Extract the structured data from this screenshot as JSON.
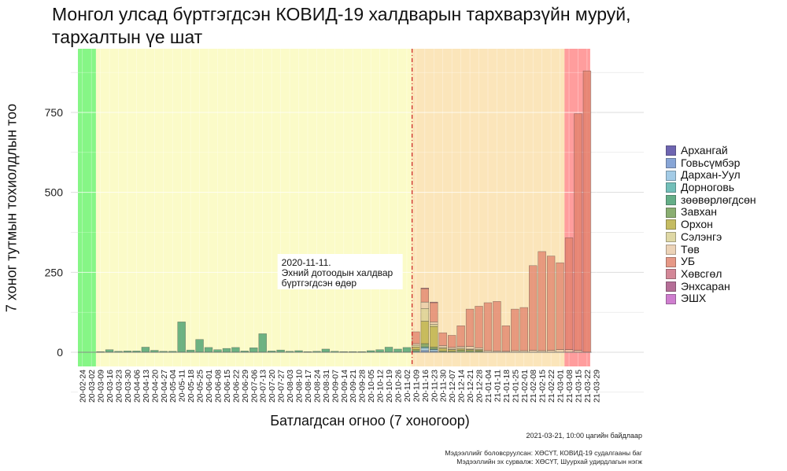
{
  "chart_data": {
    "type": "bar",
    "stacked": true,
    "title": "Монгол улсад бүртгэгдсэн КОВИД-19 халдварын тархварзүйн муруй, тархалтын үе шат",
    "xlabel": "Батлагдсан огноо (7 хоногоор)",
    "ylabel": "7 хоног тутмын тохиолдлын тоо",
    "ylim": [
      -15,
      900
    ],
    "yticks": [
      0,
      250,
      500,
      750
    ],
    "grid": true,
    "legend_position": "right",
    "categories": [
      "20-02-24",
      "20-03-02",
      "20-03-09",
      "20-03-16",
      "20-03-23",
      "20-03-30",
      "20-04-06",
      "20-04-13",
      "20-04-20",
      "20-04-27",
      "20-05-04",
      "20-05-11",
      "20-05-18",
      "20-05-25",
      "20-06-01",
      "20-06-08",
      "20-06-15",
      "20-06-22",
      "20-06-29",
      "20-07-06",
      "20-07-13",
      "20-07-20",
      "20-07-27",
      "20-08-03",
      "20-08-10",
      "20-08-17",
      "20-08-24",
      "20-08-31",
      "20-09-07",
      "20-09-14",
      "20-09-21",
      "20-09-28",
      "20-10-05",
      "20-10-12",
      "20-10-19",
      "20-10-26",
      "20-11-02",
      "20-11-09",
      "20-11-16",
      "20-11-23",
      "20-11-30",
      "20-12-07",
      "20-12-14",
      "20-12-21",
      "20-12-28",
      "21-01-04",
      "21-01-11",
      "21-01-18",
      "21-01-25",
      "21-02-01",
      "21-02-08",
      "21-02-15",
      "21-02-22",
      "21-03-01",
      "21-03-08",
      "21-03-15",
      "21-03-22",
      "21-03-29"
    ],
    "series": [
      {
        "name": "Архангай",
        "color": "#4b3f9e",
        "values": [
          0,
          0,
          0,
          0,
          0,
          0,
          0,
          0,
          0,
          0,
          0,
          0,
          0,
          0,
          0,
          0,
          0,
          0,
          0,
          0,
          0,
          0,
          0,
          0,
          0,
          0,
          0,
          0,
          0,
          0,
          0,
          0,
          0,
          0,
          0,
          0,
          0,
          0,
          0,
          0,
          0,
          0,
          0,
          0,
          0,
          0,
          0,
          0,
          0,
          0,
          0,
          0,
          0,
          0,
          0,
          0,
          0,
          0
        ]
      },
      {
        "name": "Говьсүмбэр",
        "color": "#6a8fcc",
        "values": [
          0,
          0,
          0,
          0,
          0,
          0,
          0,
          0,
          0,
          0,
          0,
          0,
          0,
          0,
          0,
          0,
          0,
          0,
          0,
          0,
          0,
          0,
          0,
          0,
          0,
          0,
          0,
          0,
          0,
          0,
          0,
          0,
          0,
          0,
          0,
          0,
          0,
          0,
          5,
          3,
          0,
          0,
          0,
          0,
          0,
          0,
          0,
          0,
          0,
          0,
          0,
          0,
          0,
          0,
          0,
          0,
          0,
          0
        ]
      },
      {
        "name": "Дархан-Уул",
        "color": "#8dbfe0",
        "values": [
          0,
          0,
          0,
          0,
          0,
          0,
          0,
          0,
          0,
          0,
          0,
          0,
          0,
          0,
          0,
          0,
          0,
          0,
          0,
          0,
          0,
          0,
          0,
          0,
          0,
          0,
          0,
          0,
          0,
          0,
          0,
          0,
          0,
          0,
          0,
          0,
          0,
          0,
          8,
          5,
          0,
          0,
          0,
          0,
          0,
          0,
          0,
          0,
          0,
          0,
          0,
          0,
          0,
          0,
          0,
          0,
          0,
          0
        ]
      },
      {
        "name": "Дорноговь",
        "color": "#4fb0a8",
        "values": [
          0,
          0,
          0,
          0,
          0,
          0,
          0,
          0,
          0,
          0,
          0,
          0,
          0,
          0,
          0,
          0,
          0,
          0,
          0,
          0,
          0,
          0,
          0,
          0,
          0,
          0,
          0,
          0,
          0,
          0,
          0,
          0,
          0,
          0,
          0,
          0,
          0,
          3,
          4,
          2,
          0,
          0,
          0,
          0,
          0,
          0,
          0,
          0,
          0,
          0,
          0,
          0,
          0,
          0,
          0,
          0,
          0,
          0
        ]
      },
      {
        "name": "зөөвөрлөгдсөн",
        "color": "#3e9a6a",
        "values": [
          0,
          0,
          2,
          8,
          3,
          4,
          4,
          16,
          6,
          3,
          3,
          95,
          7,
          40,
          15,
          8,
          12,
          15,
          4,
          14,
          58,
          4,
          7,
          3,
          5,
          2,
          3,
          10,
          3,
          2,
          2,
          2,
          5,
          8,
          16,
          10,
          15,
          0,
          0,
          0,
          0,
          0,
          0,
          0,
          0,
          0,
          0,
          0,
          0,
          0,
          0,
          0,
          0,
          0,
          0,
          0,
          0,
          0
        ]
      },
      {
        "name": "Завхан",
        "color": "#6e9a4e",
        "values": [
          0,
          0,
          0,
          0,
          0,
          0,
          0,
          0,
          0,
          0,
          0,
          0,
          0,
          0,
          0,
          0,
          0,
          0,
          0,
          0,
          0,
          0,
          0,
          0,
          0,
          0,
          0,
          0,
          0,
          0,
          0,
          0,
          0,
          0,
          0,
          0,
          0,
          5,
          10,
          6,
          4,
          3,
          6,
          5,
          4,
          0,
          0,
          0,
          0,
          0,
          0,
          0,
          0,
          0,
          0,
          0,
          0,
          0
        ]
      },
      {
        "name": "Орхон",
        "color": "#b7ac3c",
        "values": [
          0,
          0,
          0,
          0,
          0,
          0,
          0,
          0,
          0,
          0,
          0,
          0,
          0,
          0,
          0,
          0,
          0,
          0,
          0,
          0,
          0,
          0,
          0,
          0,
          0,
          0,
          0,
          0,
          0,
          0,
          0,
          0,
          0,
          0,
          0,
          0,
          0,
          8,
          70,
          65,
          8,
          5,
          4,
          3,
          3,
          0,
          0,
          0,
          0,
          0,
          0,
          0,
          0,
          0,
          0,
          0,
          0,
          0
        ]
      },
      {
        "name": "Сэлэнгэ",
        "color": "#d8cf8f",
        "values": [
          0,
          0,
          0,
          0,
          0,
          0,
          0,
          0,
          0,
          0,
          0,
          0,
          0,
          0,
          0,
          0,
          0,
          0,
          0,
          0,
          0,
          0,
          0,
          0,
          0,
          0,
          0,
          0,
          0,
          0,
          0,
          0,
          0,
          0,
          0,
          0,
          0,
          6,
          40,
          6,
          3,
          2,
          3,
          2,
          2,
          0,
          0,
          0,
          0,
          0,
          0,
          0,
          0,
          0,
          0,
          0,
          0,
          0
        ]
      },
      {
        "name": "Төв",
        "color": "#e8c9a6",
        "values": [
          0,
          0,
          0,
          0,
          0,
          0,
          0,
          0,
          0,
          0,
          0,
          0,
          0,
          0,
          0,
          0,
          0,
          0,
          0,
          0,
          0,
          0,
          0,
          0,
          0,
          0,
          0,
          0,
          0,
          0,
          0,
          0,
          0,
          0,
          0,
          0,
          0,
          5,
          20,
          8,
          6,
          5,
          5,
          8,
          5,
          5,
          4,
          3,
          5,
          5,
          6,
          5,
          6,
          8,
          8,
          6,
          0,
          0
        ]
      },
      {
        "name": "УБ",
        "color": "#e07f68",
        "values": [
          0,
          0,
          0,
          0,
          0,
          0,
          0,
          0,
          0,
          0,
          0,
          0,
          0,
          0,
          0,
          0,
          0,
          0,
          0,
          0,
          0,
          0,
          0,
          0,
          0,
          0,
          0,
          0,
          0,
          0,
          0,
          0,
          0,
          0,
          0,
          0,
          0,
          37,
          42,
          60,
          40,
          38,
          65,
          117,
          130,
          150,
          155,
          80,
          130,
          135,
          265,
          310,
          295,
          272,
          350,
          740,
          880,
          0
        ]
      },
      {
        "name": "Хөвсгөл",
        "color": "#c96a7e",
        "values": [
          0,
          0,
          0,
          0,
          0,
          0,
          0,
          0,
          0,
          0,
          0,
          0,
          0,
          0,
          0,
          0,
          0,
          0,
          0,
          0,
          0,
          0,
          0,
          0,
          0,
          0,
          0,
          0,
          0,
          0,
          0,
          0,
          0,
          0,
          0,
          0,
          0,
          0,
          2,
          2,
          0,
          0,
          0,
          0,
          0,
          0,
          0,
          0,
          0,
          0,
          0,
          0,
          0,
          0,
          0,
          0,
          0,
          0
        ]
      },
      {
        "name": "Энхсаран",
        "color": "#a34a7e",
        "values": [
          0,
          0,
          0,
          0,
          0,
          0,
          0,
          0,
          0,
          0,
          0,
          0,
          0,
          0,
          0,
          0,
          0,
          0,
          0,
          0,
          0,
          0,
          0,
          0,
          0,
          0,
          0,
          0,
          0,
          0,
          0,
          0,
          0,
          0,
          0,
          0,
          0,
          0,
          0,
          0,
          0,
          0,
          0,
          0,
          0,
          0,
          0,
          0,
          0,
          0,
          0,
          0,
          0,
          0,
          0,
          0,
          0,
          0
        ]
      },
      {
        "name": "ЭШХ",
        "color": "#c45ec4",
        "values": [
          0,
          0,
          0,
          0,
          0,
          0,
          0,
          0,
          0,
          0,
          0,
          0,
          0,
          0,
          0,
          0,
          0,
          0,
          0,
          0,
          0,
          0,
          0,
          0,
          0,
          0,
          0,
          0,
          0,
          0,
          0,
          0,
          0,
          0,
          0,
          0,
          0,
          0,
          0,
          0,
          0,
          0,
          0,
          0,
          0,
          0,
          0,
          0,
          0,
          0,
          0,
          0,
          0,
          0,
          0,
          0,
          0,
          0
        ]
      }
    ],
    "phases": [
      {
        "from": "20-02-24",
        "to": "20-03-09",
        "color": "#22ee22"
      },
      {
        "from": "20-03-09",
        "to": "20-11-09",
        "color": "#f8f89a"
      },
      {
        "from": "20-11-09",
        "to": "21-03-08",
        "color": "#f7cf82"
      },
      {
        "from": "21-03-08",
        "to": "21-03-29",
        "color": "#ff4d4d"
      }
    ],
    "vline": {
      "at": "20-11-09",
      "color": "#cc2222"
    },
    "annotation": {
      "at": "20-11-09",
      "lines": [
        "2020-11-11.",
        "Эхний дотоодын халдвар",
        "бүртгэгдсэн өдөр"
      ]
    }
  },
  "caption": {
    "date": "2021-03-21, 10:00 цагийн байдлаар",
    "source_line1": "Мэдээллийг боловсруулсан: ХӨСҮТ, КОВИД-19 судалгааны баг",
    "source_line2": "Мэдээллийн эх сурвалж: ХӨСҮТ, Шуурхай удирдлагын нэгж"
  }
}
